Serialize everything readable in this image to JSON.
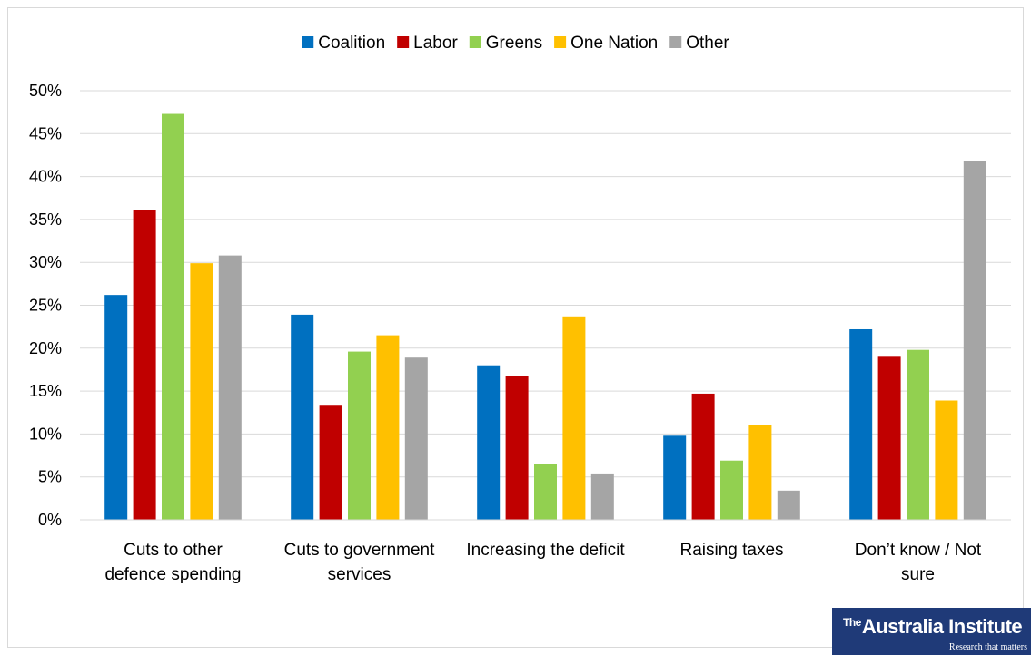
{
  "chart_data": {
    "type": "bar",
    "title": "",
    "xlabel": "",
    "ylabel": "",
    "ylim": [
      0,
      50
    ],
    "yticks": [
      "0%",
      "5%",
      "10%",
      "15%",
      "20%",
      "25%",
      "30%",
      "35%",
      "40%",
      "45%",
      "50%"
    ],
    "grid": true,
    "legend_position": "top",
    "categories": [
      [
        "Cuts to other",
        "defence spending"
      ],
      [
        "Cuts to government",
        "services"
      ],
      [
        "Increasing the deficit"
      ],
      [
        "Raising taxes"
      ],
      [
        "Don’t know / Not",
        "sure"
      ]
    ],
    "series": [
      {
        "name": "Coalition",
        "color": "#0070c0",
        "values": [
          26.2,
          23.9,
          18.0,
          9.8,
          22.2
        ]
      },
      {
        "name": "Labor",
        "color": "#c00000",
        "values": [
          36.1,
          13.4,
          16.8,
          14.7,
          19.1
        ]
      },
      {
        "name": "Greens",
        "color": "#92d050",
        "values": [
          47.3,
          19.6,
          6.5,
          6.9,
          19.8
        ]
      },
      {
        "name": "One Nation",
        "color": "#ffc000",
        "values": [
          29.9,
          21.5,
          23.7,
          11.1,
          13.9
        ]
      },
      {
        "name": "Other",
        "color": "#a5a5a5",
        "values": [
          30.8,
          18.9,
          5.4,
          3.4,
          41.8
        ]
      }
    ]
  },
  "logo": {
    "the": "The",
    "name": "Australia Institute",
    "tagline": "Research that matters"
  }
}
